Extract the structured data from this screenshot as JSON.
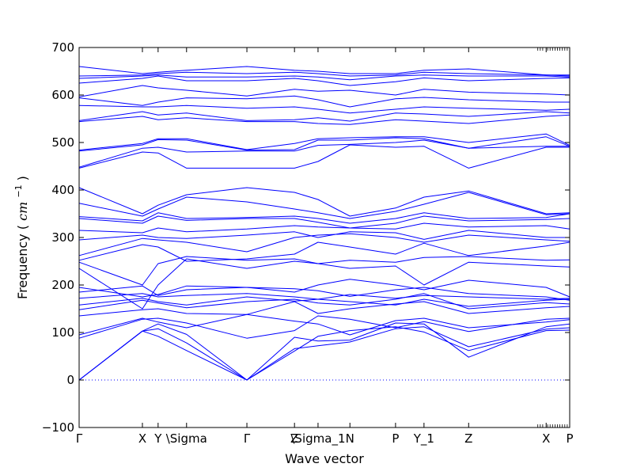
{
  "chart_data": {
    "type": "line",
    "title": "",
    "xlabel": "Wave vector",
    "ylabel": "Frequency",
    "ylabel_unit": "cm",
    "ylabel_unit_exp": "−1",
    "ylim": [
      -100,
      700
    ],
    "yticks": [
      -100,
      0,
      100,
      200,
      300,
      400,
      500,
      600,
      700
    ],
    "grid": false,
    "legend": "none",
    "line_color": "#0000ff",
    "zero_line": {
      "y": 0,
      "style": "dotted"
    },
    "xlim": [
      0,
      1
    ],
    "xticks": [
      {
        "x": 0.0,
        "label": "Γ"
      },
      {
        "x": 0.129,
        "label": "X"
      },
      {
        "x": 0.161,
        "label": "Y"
      },
      {
        "x": 0.219,
        "label": "\\Sigma"
      },
      {
        "x": 0.342,
        "label": "Γ"
      },
      {
        "x": 0.439,
        "label": "Z"
      },
      {
        "x": 0.487,
        "label": "\\Sigma_1"
      },
      {
        "x": 0.552,
        "label": "N"
      },
      {
        "x": 0.645,
        "label": "P"
      },
      {
        "x": 0.703,
        "label": "Y_1"
      },
      {
        "x": 0.794,
        "label": "Z"
      },
      {
        "x": 0.952,
        "label": "X"
      },
      {
        "x": 1.0,
        "label": "P"
      }
    ],
    "minor_ticks_x": [
      0.935,
      0.94,
      0.945,
      0.955,
      0.96,
      0.965,
      0.97,
      0.975,
      0.98,
      0.985,
      0.99,
      0.995
    ],
    "series": [
      {
        "x": [
          0,
          0.129,
          0.161,
          0.219,
          0.342,
          0.439,
          0.487,
          0.552,
          0.645,
          0.703,
          0.794,
          0.952,
          1.0
        ],
        "values": [
          0,
          103,
          92,
          62,
          0,
          61,
          92,
          104,
          112,
          101,
          62,
          104,
          105
        ]
      },
      {
        "x": [
          0,
          0.129,
          0.161,
          0.219,
          0.342,
          0.439,
          0.487,
          0.552,
          0.645,
          0.703,
          0.794,
          0.952,
          1.0
        ],
        "values": [
          0,
          103,
          108,
          78,
          0,
          66,
          72,
          80,
          108,
          112,
          70,
          107,
          110
        ]
      },
      {
        "x": [
          0,
          0.129,
          0.161,
          0.219,
          0.342,
          0.439,
          0.487,
          0.552,
          0.645,
          0.703,
          0.794,
          0.952,
          1.0
        ],
        "values": [
          0,
          103,
          118,
          96,
          0,
          90,
          82,
          84,
          120,
          118,
          48,
          112,
          118
        ]
      },
      {
        "x": [
          0,
          0.129,
          0.161,
          0.219,
          0.342,
          0.439,
          0.487,
          0.552,
          0.645,
          0.703,
          0.794,
          0.952,
          1.0
        ],
        "values": [
          88,
          128,
          130,
          120,
          88,
          104,
          135,
          128,
          110,
          123,
          102,
          128,
          130
        ]
      },
      {
        "x": [
          0,
          0.129,
          0.161,
          0.219,
          0.342,
          0.439,
          0.487,
          0.552,
          0.645,
          0.703,
          0.794,
          0.952,
          1.0
        ],
        "values": [
          95,
          130,
          122,
          110,
          138,
          124,
          118,
          95,
          125,
          130,
          110,
          122,
          127
        ]
      },
      {
        "x": [
          0,
          0.129,
          0.161,
          0.219,
          0.342,
          0.439,
          0.487,
          0.552,
          0.645,
          0.703,
          0.794,
          0.952,
          1.0
        ],
        "values": [
          135,
          148,
          150,
          140,
          138,
          165,
          140,
          150,
          160,
          165,
          140,
          152,
          155
        ]
      },
      {
        "x": [
          0,
          0.129,
          0.161,
          0.219,
          0.342,
          0.439,
          0.487,
          0.552,
          0.645,
          0.703,
          0.794,
          0.952,
          1.0
        ],
        "values": [
          148,
          168,
          162,
          152,
          165,
          170,
          162,
          158,
          170,
          182,
          150,
          163,
          160
        ]
      },
      {
        "x": [
          0,
          0.129,
          0.161,
          0.219,
          0.342,
          0.439,
          0.487,
          0.552,
          0.645,
          0.703,
          0.794,
          0.952,
          1.0
        ],
        "values": [
          158,
          172,
          165,
          158,
          175,
          166,
          170,
          165,
          158,
          170,
          155,
          168,
          170
        ]
      },
      {
        "x": [
          0,
          0.129,
          0.161,
          0.219,
          0.342,
          0.439,
          0.487,
          0.552,
          0.645,
          0.703,
          0.794,
          0.952,
          1.0
        ],
        "values": [
          172,
          182,
          175,
          178,
          182,
          175,
          170,
          180,
          172,
          178,
          175,
          170,
          172
        ]
      },
      {
        "x": [
          0,
          0.129,
          0.161,
          0.219,
          0.342,
          0.439,
          0.487,
          0.552,
          0.645,
          0.703,
          0.794,
          0.952,
          1.0
        ],
        "values": [
          185,
          198,
          178,
          190,
          195,
          192,
          188,
          176,
          190,
          195,
          182,
          175,
          168
        ]
      },
      {
        "x": [
          0,
          0.129,
          0.161,
          0.219,
          0.342,
          0.439,
          0.487,
          0.552,
          0.645,
          0.703,
          0.794,
          0.952,
          1.0
        ],
        "values": [
          195,
          175,
          180,
          198,
          195,
          185,
          200,
          212,
          200,
          190,
          210,
          195,
          175
        ]
      },
      {
        "x": [
          0,
          0.129,
          0.161,
          0.219,
          0.342,
          0.439,
          0.487,
          0.552,
          0.645,
          0.703,
          0.794,
          0.952,
          1.0
        ],
        "values": [
          235,
          150,
          200,
          255,
          235,
          250,
          245,
          235,
          240,
          200,
          248,
          240,
          238
        ]
      },
      {
        "x": [
          0,
          0.129,
          0.161,
          0.219,
          0.342,
          0.439,
          0.487,
          0.552,
          0.645,
          0.703,
          0.794,
          0.952,
          1.0
        ],
        "values": [
          248,
          200,
          245,
          260,
          252,
          255,
          245,
          252,
          248,
          258,
          260,
          252,
          253
        ]
      },
      {
        "x": [
          0,
          0.129,
          0.161,
          0.219,
          0.342,
          0.439,
          0.487,
          0.552,
          0.645,
          0.703,
          0.794,
          0.952,
          1.0
        ],
        "values": [
          252,
          285,
          280,
          250,
          255,
          265,
          290,
          280,
          265,
          288,
          262,
          282,
          290
        ]
      },
      {
        "x": [
          0,
          0.129,
          0.161,
          0.219,
          0.342,
          0.439,
          0.487,
          0.552,
          0.645,
          0.703,
          0.794,
          0.952,
          1.0
        ],
        "values": [
          262,
          298,
          295,
          290,
          270,
          300,
          305,
          308,
          300,
          290,
          305,
          295,
          292
        ]
      },
      {
        "x": [
          0,
          0.129,
          0.161,
          0.219,
          0.342,
          0.439,
          0.487,
          0.552,
          0.645,
          0.703,
          0.794,
          0.952,
          1.0
        ],
        "values": [
          295,
          305,
          300,
          298,
          305,
          312,
          300,
          312,
          310,
          296,
          315,
          300,
          300
        ]
      },
      {
        "x": [
          0,
          0.129,
          0.161,
          0.219,
          0.342,
          0.439,
          0.487,
          0.552,
          0.645,
          0.703,
          0.794,
          0.952,
          1.0
        ],
        "values": [
          315,
          310,
          320,
          312,
          318,
          325,
          322,
          320,
          318,
          330,
          322,
          325,
          318
        ]
      },
      {
        "x": [
          0,
          0.129,
          0.161,
          0.219,
          0.342,
          0.439,
          0.487,
          0.552,
          0.645,
          0.703,
          0.794,
          0.952,
          1.0
        ],
        "values": [
          340,
          330,
          345,
          336,
          340,
          340,
          332,
          320,
          330,
          345,
          335,
          338,
          340
        ]
      },
      {
        "x": [
          0,
          0.129,
          0.161,
          0.219,
          0.342,
          0.439,
          0.487,
          0.552,
          0.645,
          0.703,
          0.794,
          0.952,
          1.0
        ],
        "values": [
          344,
          335,
          352,
          340,
          342,
          345,
          340,
          330,
          340,
          352,
          340,
          342,
          350
        ]
      },
      {
        "x": [
          0,
          0.129,
          0.161,
          0.219,
          0.342,
          0.439,
          0.487,
          0.552,
          0.645,
          0.703,
          0.794,
          0.952,
          1.0
        ],
        "values": [
          372,
          345,
          360,
          385,
          375,
          360,
          352,
          340,
          355,
          370,
          395,
          348,
          350
        ]
      },
      {
        "x": [
          0,
          0.129,
          0.161,
          0.219,
          0.342,
          0.439,
          0.487,
          0.552,
          0.645,
          0.703,
          0.794,
          0.952,
          1.0
        ],
        "values": [
          405,
          350,
          368,
          390,
          405,
          395,
          380,
          345,
          362,
          385,
          398,
          350,
          352
        ]
      },
      {
        "x": [
          0,
          0.129,
          0.161,
          0.219,
          0.342,
          0.439,
          0.487,
          0.552,
          0.645,
          0.703,
          0.794,
          0.952,
          1.0
        ],
        "values": [
          446,
          480,
          478,
          446,
          446,
          446,
          460,
          495,
          490,
          492,
          446,
          490,
          490
        ]
      },
      {
        "x": [
          0,
          0.129,
          0.161,
          0.219,
          0.342,
          0.439,
          0.487,
          0.552,
          0.645,
          0.703,
          0.794,
          0.952,
          1.0
        ],
        "values": [
          448,
          488,
          490,
          480,
          482,
          482,
          494,
          496,
          500,
          505,
          488,
          492,
          492
        ]
      },
      {
        "x": [
          0,
          0.129,
          0.161,
          0.219,
          0.342,
          0.439,
          0.487,
          0.552,
          0.645,
          0.703,
          0.794,
          0.952,
          1.0
        ],
        "values": [
          482,
          495,
          506,
          505,
          484,
          485,
          505,
          505,
          510,
          508,
          488,
          512,
          492
        ]
      },
      {
        "x": [
          0,
          0.129,
          0.161,
          0.219,
          0.342,
          0.439,
          0.487,
          0.552,
          0.645,
          0.703,
          0.794,
          0.952,
          1.0
        ],
        "values": [
          484,
          498,
          508,
          508,
          485,
          498,
          508,
          510,
          512,
          512,
          500,
          518,
          494
        ]
      },
      {
        "x": [
          0,
          0.129,
          0.161,
          0.219,
          0.342,
          0.439,
          0.487,
          0.552,
          0.645,
          0.703,
          0.794,
          0.952,
          1.0
        ],
        "values": [
          544,
          555,
          548,
          552,
          544,
          544,
          540,
          538,
          548,
          545,
          540,
          555,
          558
        ]
      },
      {
        "x": [
          0,
          0.129,
          0.161,
          0.219,
          0.342,
          0.439,
          0.487,
          0.552,
          0.645,
          0.703,
          0.794,
          0.952,
          1.0
        ],
        "values": [
          546,
          565,
          558,
          562,
          546,
          548,
          552,
          545,
          562,
          560,
          555,
          565,
          562
        ]
      },
      {
        "x": [
          0,
          0.129,
          0.161,
          0.219,
          0.342,
          0.439,
          0.487,
          0.552,
          0.645,
          0.703,
          0.794,
          0.952,
          1.0
        ],
        "values": [
          578,
          575,
          575,
          578,
          572,
          575,
          570,
          562,
          570,
          575,
          572,
          568,
          570
        ]
      },
      {
        "x": [
          0,
          0.129,
          0.161,
          0.219,
          0.342,
          0.439,
          0.487,
          0.552,
          0.645,
          0.703,
          0.794,
          0.952,
          1.0
        ],
        "values": [
          594,
          578,
          585,
          594,
          592,
          598,
          590,
          575,
          592,
          595,
          590,
          585,
          585
        ]
      },
      {
        "x": [
          0,
          0.129,
          0.161,
          0.219,
          0.342,
          0.439,
          0.487,
          0.552,
          0.645,
          0.703,
          0.794,
          0.952,
          1.0
        ],
        "values": [
          596,
          620,
          615,
          610,
          598,
          612,
          608,
          610,
          600,
          612,
          606,
          602,
          600
        ]
      },
      {
        "x": [
          0,
          0.129,
          0.161,
          0.219,
          0.342,
          0.439,
          0.487,
          0.552,
          0.645,
          0.703,
          0.794,
          0.952,
          1.0
        ],
        "values": [
          625,
          635,
          640,
          630,
          630,
          635,
          630,
          620,
          628,
          636,
          630,
          635,
          636
        ]
      },
      {
        "x": [
          0,
          0.129,
          0.161,
          0.219,
          0.342,
          0.439,
          0.487,
          0.552,
          0.645,
          0.703,
          0.794,
          0.952,
          1.0
        ],
        "values": [
          635,
          640,
          642,
          638,
          638,
          640,
          638,
          632,
          640,
          642,
          640,
          640,
          638
        ]
      },
      {
        "x": [
          0,
          0.129,
          0.161,
          0.219,
          0.342,
          0.439,
          0.487,
          0.552,
          0.645,
          0.703,
          0.794,
          0.952,
          1.0
        ],
        "values": [
          640,
          642,
          645,
          648,
          645,
          648,
          645,
          640,
          642,
          648,
          645,
          642,
          640
        ]
      },
      {
        "x": [
          0,
          0.129,
          0.161,
          0.219,
          0.342,
          0.439,
          0.487,
          0.552,
          0.645,
          0.703,
          0.794,
          0.952,
          1.0
        ],
        "values": [
          660,
          645,
          648,
          652,
          660,
          652,
          650,
          645,
          645,
          652,
          655,
          642,
          642
        ]
      }
    ]
  }
}
